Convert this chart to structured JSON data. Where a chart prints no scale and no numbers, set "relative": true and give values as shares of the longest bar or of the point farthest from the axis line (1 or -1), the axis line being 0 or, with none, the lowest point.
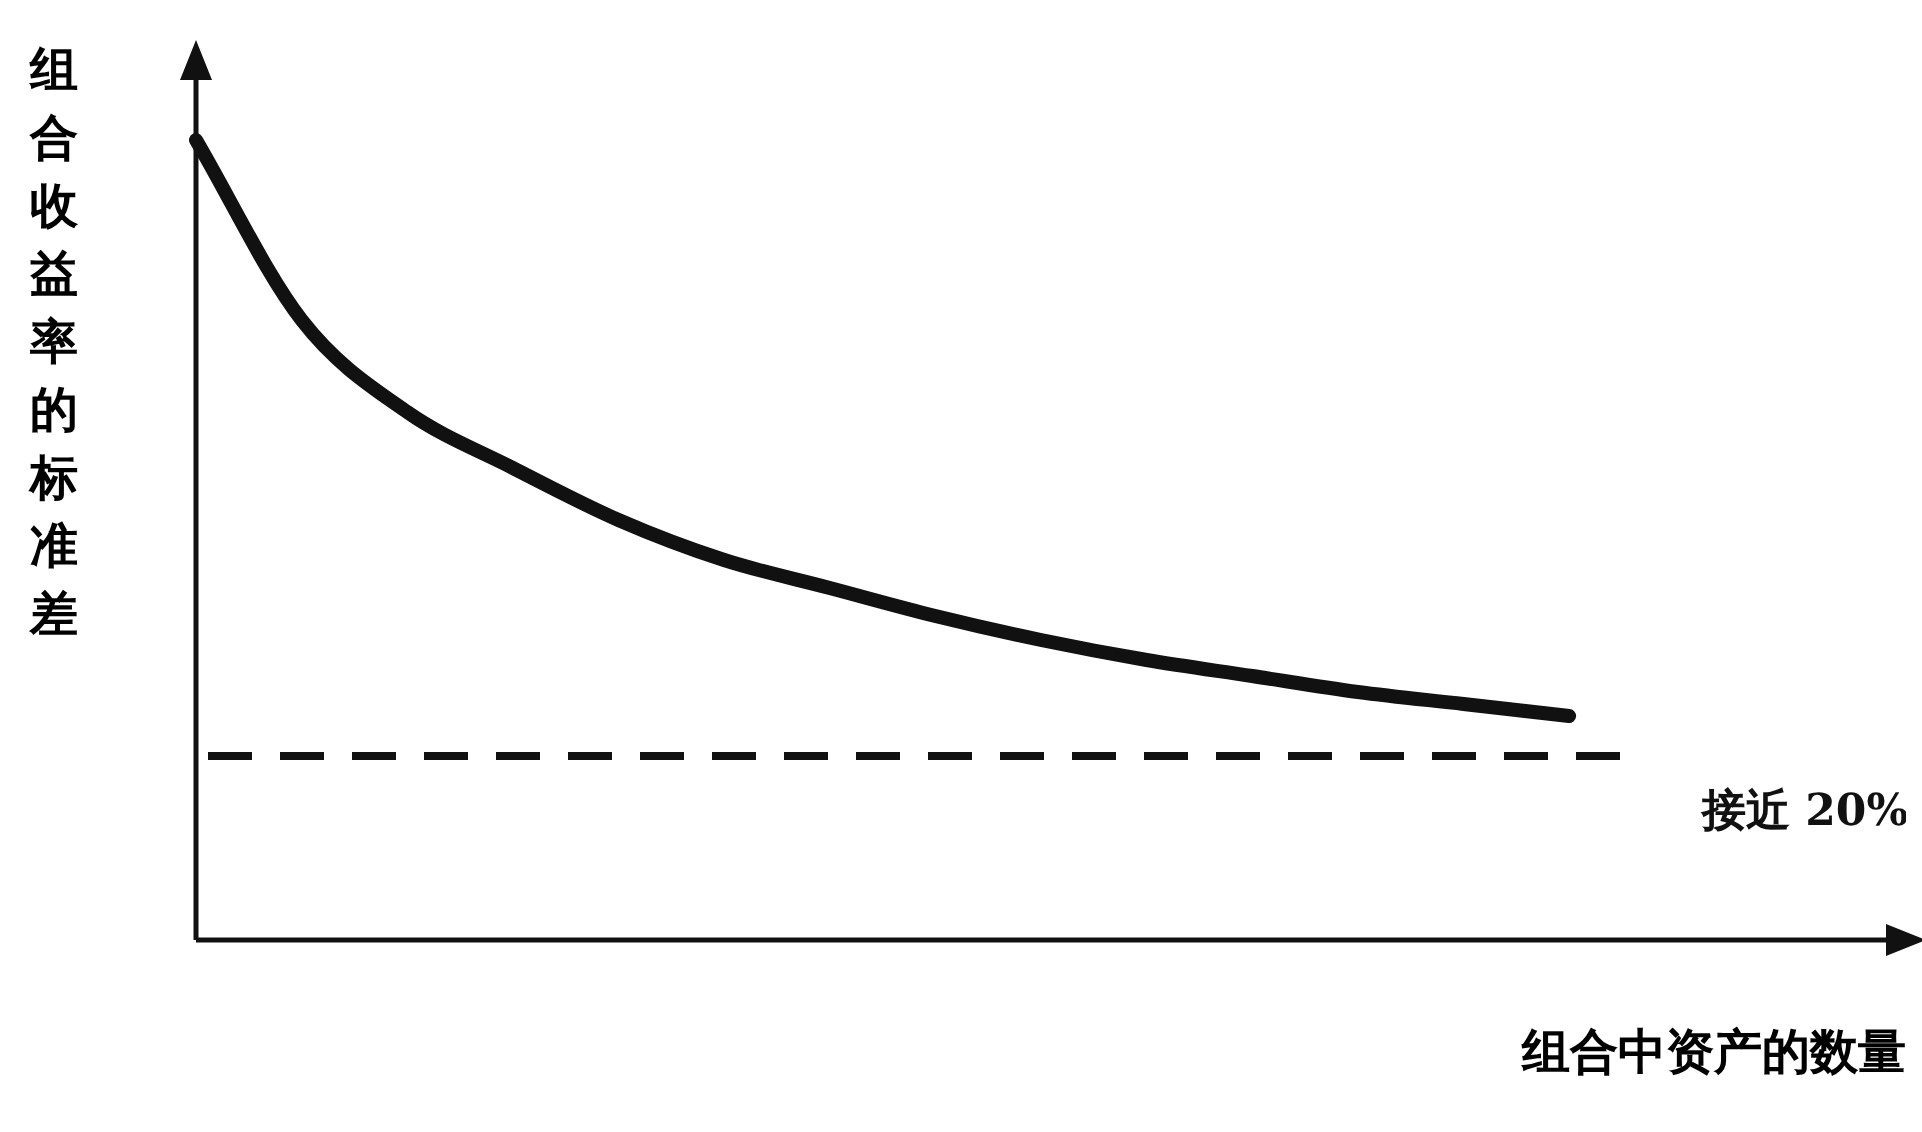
{
  "chart_data": {
    "type": "line",
    "relative": true,
    "xlabel": "组合中资产的数量",
    "ylabel": "组合收益率的标准差",
    "categories": [
      null,
      null,
      null,
      null,
      null,
      null,
      null,
      null,
      null,
      null,
      null,
      null,
      null,
      null,
      null,
      null,
      null
    ],
    "series": [
      {
        "color": "#111111",
        "values": [
          1.0,
          0.775,
          0.66,
          0.59,
          0.525,
          0.475,
          0.44,
          0.405,
          0.375,
          0.35,
          0.33,
          0.31,
          0.295,
          0.28,
          null,
          null,
          null
        ]
      }
    ],
    "ref_lines": [
      {
        "axis": "y",
        "value": 0.23,
        "label": "接近 20%",
        "color": "#111111",
        "line_style": "dashed"
      }
    ],
    "grid": false,
    "legend": false,
    "marker": "none",
    "line_style": "solid"
  }
}
